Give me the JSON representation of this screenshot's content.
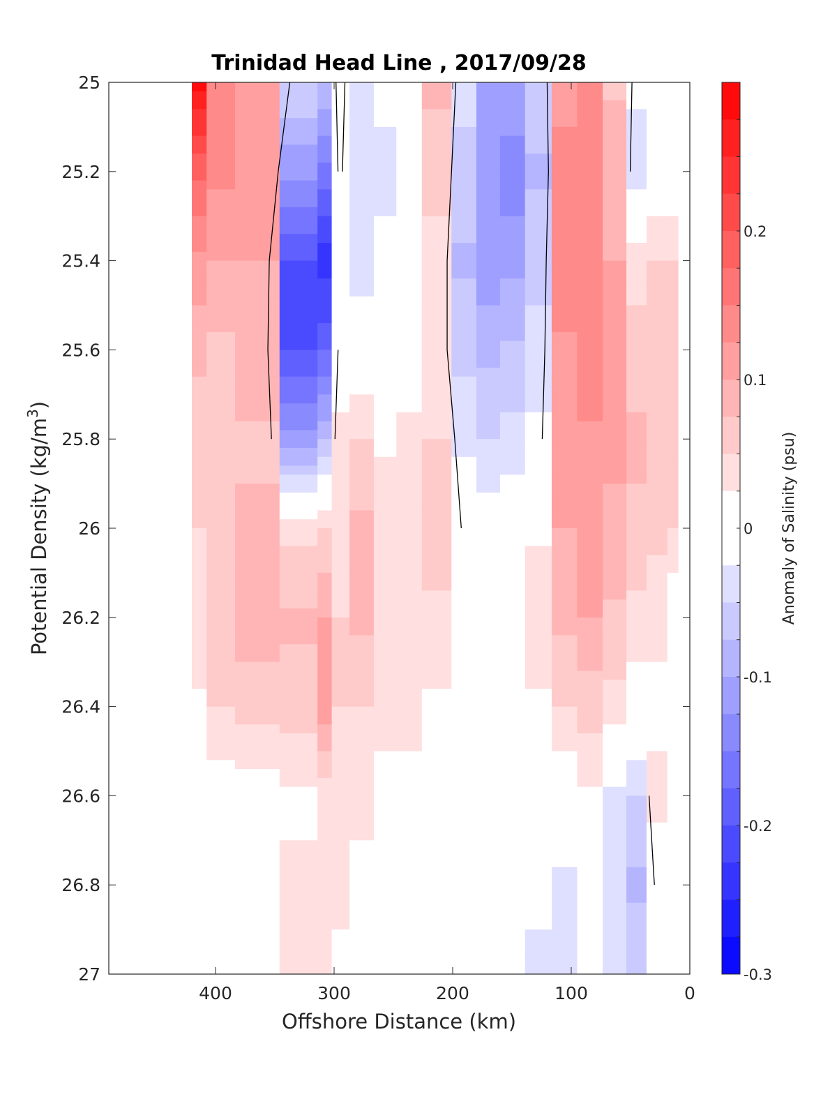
{
  "chart_data": {
    "type": "heatmap",
    "title": "Trinidad Head Line , 2017/09/28",
    "xlabel": "Offshore Distance (km)",
    "ylabel_main": "Potential Density (kg/m",
    "ylabel_sup": "3",
    "ylabel_close": ")",
    "xlim": [
      490,
      0
    ],
    "ylim": [
      25,
      27
    ],
    "y_reversed": true,
    "x_ticks": [
      "400",
      "300",
      "200",
      "100",
      "0"
    ],
    "x_tick_values": [
      400,
      300,
      200,
      100,
      0
    ],
    "y_ticks": [
      "25",
      "25.2",
      "25.4",
      "25.6",
      "25.8",
      "26",
      "26.2",
      "26.4",
      "26.6",
      "26.8",
      "27"
    ],
    "y_tick_values": [
      25,
      25.2,
      25.4,
      25.6,
      25.8,
      26,
      26.2,
      26.4,
      26.6,
      26.8,
      27
    ],
    "colorbar": {
      "label": "Anomaly of Salinity (psu)",
      "range": [
        -0.3,
        0.3
      ],
      "levels": 24,
      "ticks": [
        "0.2",
        "0.1",
        "0",
        "-0.1",
        "-0.2",
        "-0.3"
      ],
      "tick_values": [
        0.2,
        0.1,
        0,
        -0.1,
        -0.2,
        -0.3
      ],
      "max_color": "#ff0000",
      "min_color": "#0000ff",
      "mid_color": "#ffffff"
    },
    "profiles": [
      {
        "x": 420,
        "values": [
          0.28,
          0.18,
          0.12,
          0.08,
          0.06,
          0.05,
          0.04,
          0.02,
          0.01,
          null,
          null
        ]
      },
      {
        "x": 395,
        "values": [
          0.14,
          0.13,
          0.1,
          0.07,
          0.06,
          0.07,
          0.06,
          0.05,
          0.01,
          null,
          null
        ]
      },
      {
        "x": 372,
        "values": [
          0.1,
          0.11,
          0.1,
          0.09,
          0.07,
          0.08,
          0.09,
          0.06,
          0.01,
          null,
          null
        ]
      },
      {
        "x": 320,
        "values": [
          -0.05,
          -0.12,
          -0.2,
          -0.2,
          -0.12,
          0.04,
          0.08,
          0.06,
          0.02,
          0.03,
          0.05
        ]
      },
      {
        "x": 308,
        "values": [
          -0.08,
          -0.16,
          -0.24,
          -0.18,
          -0.08,
          0.05,
          0.1,
          0.12,
          0.03,
          0.04,
          0.05
        ]
      },
      {
        "x": 296,
        "values": [
          0.02,
          0.01,
          0.0,
          0.01,
          0.03,
          0.04,
          0.05,
          0.05,
          0.04,
          0.03,
          0.02
        ]
      },
      {
        "x": 278,
        "values": [
          -0.05,
          -0.05,
          -0.04,
          0.0,
          0.05,
          0.08,
          0.08,
          0.05,
          0.03,
          0.02,
          0.0
        ]
      },
      {
        "x": 255,
        "values": [
          -0.02,
          -0.03,
          -0.02,
          0.0,
          0.02,
          0.04,
          0.04,
          0.03,
          0.02,
          0.01,
          0.0
        ]
      },
      {
        "x": 240,
        "values": [
          0.0,
          0.01,
          0.0,
          0.01,
          0.03,
          0.05,
          0.04,
          0.03,
          0.02,
          0.0,
          0.0
        ]
      },
      {
        "x": 212,
        "values": [
          0.08,
          0.06,
          0.04,
          0.03,
          0.05,
          0.07,
          0.04,
          0.02,
          0.0,
          -0.01,
          0.0
        ]
      },
      {
        "x": 190,
        "values": [
          -0.04,
          -0.06,
          -0.08,
          -0.06,
          -0.03,
          -0.01,
          0.0,
          0.0,
          0.0,
          0.0,
          0.0
        ]
      },
      {
        "x": 170,
        "values": [
          -0.1,
          -0.12,
          -0.12,
          -0.08,
          -0.05,
          -0.01,
          0.0,
          -0.01,
          -0.01,
          0.01,
          0.0
        ]
      },
      {
        "x": 150,
        "values": [
          -0.1,
          -0.14,
          -0.11,
          -0.07,
          -0.04,
          0.0,
          0.0,
          0.0,
          0.01,
          0.0,
          0.0
        ]
      },
      {
        "x": 128,
        "values": [
          -0.06,
          -0.08,
          -0.06,
          -0.04,
          -0.02,
          0.02,
          0.04,
          0.02,
          0.0,
          -0.02,
          -0.03
        ]
      },
      {
        "x": 105,
        "values": [
          0.12,
          0.13,
          0.14,
          0.12,
          0.11,
          0.1,
          0.08,
          0.05,
          0.0,
          -0.03,
          -0.03
        ]
      },
      {
        "x": 85,
        "values": [
          0.13,
          0.14,
          0.15,
          0.14,
          0.12,
          0.12,
          0.1,
          0.06,
          0.02,
          -0.02,
          -0.02
        ]
      },
      {
        "x": 62,
        "values": [
          0.07,
          0.09,
          0.1,
          0.11,
          0.11,
          0.09,
          0.07,
          0.04,
          -0.03,
          -0.05,
          -0.04
        ]
      },
      {
        "x": 45,
        "values": [
          -0.02,
          -0.04,
          0.04,
          0.06,
          0.08,
          0.07,
          0.04,
          0.01,
          -0.05,
          -0.08,
          -0.05
        ]
      },
      {
        "x": 28,
        "values": [
          0.01,
          0.0,
          0.05,
          0.05,
          0.05,
          0.06,
          0.03,
          0.02,
          0.03,
          0.01,
          0.0
        ]
      },
      {
        "x": 10,
        "values": [
          0.0,
          0.0,
          0.05,
          0.05,
          0.05,
          0.05,
          0.0,
          0.0,
          0.0,
          0.0,
          0.0
        ]
      }
    ]
  }
}
